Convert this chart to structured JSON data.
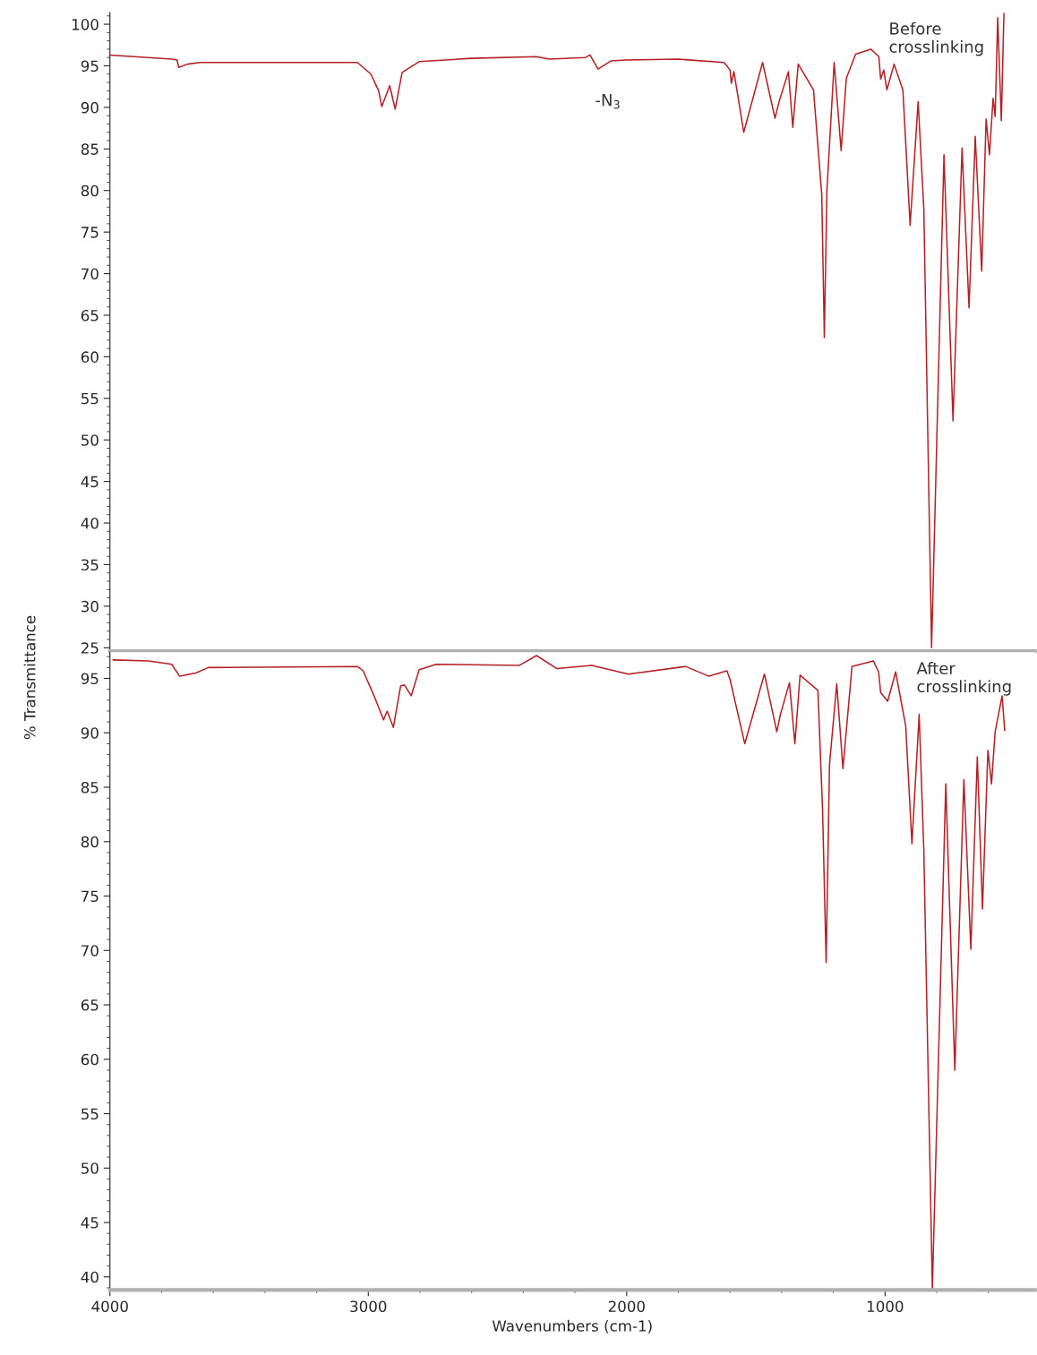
{
  "chart_data": [
    {
      "type": "line",
      "ylabel": "% Transmittance",
      "xlim": [
        4000,
        420
      ],
      "ylim": [
        24.6,
        101.4
      ],
      "tick_labels": "y",
      "grid": false,
      "legend": false,
      "marker": "none",
      "line_style": "solid",
      "xticks": [
        4000,
        3000,
        2000,
        1000
      ],
      "yticks": [
        25,
        30,
        35,
        40,
        45,
        50,
        55,
        60,
        65,
        70,
        75,
        80,
        85,
        90,
        95,
        100
      ],
      "annotations": [
        {
          "text": "-N$_{3}$",
          "x": 2111,
          "y": 94.6
        }
      ],
      "series": [
        {
          "name": "Before\ncrosslinking",
          "color": "#b52025",
          "x": [
            4000,
            3760,
            3740,
            3734,
            3700,
            3650,
            3042,
            2990,
            2960,
            2948,
            2917,
            2896,
            2869,
            2803,
            2600,
            2350,
            2300,
            2160,
            2142,
            2111,
            2060,
            2003,
            1800,
            1623,
            1600,
            1595,
            1585,
            1547,
            1474,
            1426,
            1410,
            1374,
            1357,
            1336,
            1277,
            1245,
            1235,
            1225,
            1197,
            1170,
            1150,
            1114,
            1055,
            1024,
            1017,
            1005,
            993,
            965,
            931,
            903,
            872,
            850,
            820,
            772,
            737,
            702,
            675,
            651,
            626,
            609,
            596,
            582,
            574,
            564,
            550,
            540
          ],
          "values": [
            96.3,
            95.8,
            95.7,
            94.8,
            95.2,
            95.4,
            95.4,
            94.0,
            92.0,
            90.1,
            92.6,
            89.8,
            94.2,
            95.5,
            95.9,
            96.1,
            95.8,
            96.0,
            96.3,
            94.6,
            95.6,
            95.7,
            95.8,
            95.4,
            94.5,
            92.9,
            94.3,
            87.0,
            95.4,
            88.7,
            90.7,
            94.3,
            87.6,
            95.2,
            92.1,
            79.5,
            62.3,
            80.0,
            95.4,
            84.8,
            93.5,
            96.4,
            97.0,
            96.1,
            93.4,
            94.5,
            92.1,
            95.2,
            92.1,
            75.8,
            90.7,
            77.8,
            25.0,
            84.3,
            52.3,
            85.1,
            65.9,
            86.5,
            70.3,
            88.6,
            84.3,
            91.1,
            88.9,
            100.8,
            88.4,
            101.3
          ]
        }
      ]
    },
    {
      "type": "line",
      "xlabel": "Wavenumbers (cm-1)",
      "xlim": [
        4000,
        420
      ],
      "ylim": [
        38.8,
        97.4
      ],
      "grid": false,
      "legend": false,
      "marker": "none",
      "line_style": "solid",
      "xticks": [
        4000,
        3000,
        2000,
        1000
      ],
      "yticks": [
        40,
        45,
        50,
        55,
        60,
        65,
        70,
        75,
        80,
        85,
        90,
        95
      ],
      "series": [
        {
          "name": "After\ncrosslinking",
          "color": "#b52025",
          "x": [
            3988,
            3850,
            3761,
            3730,
            3668,
            3619,
            3042,
            3020,
            2976,
            2941,
            2927,
            2903,
            2875,
            2860,
            2834,
            2803,
            2737,
            2415,
            2349,
            2270,
            2135,
            1993,
            1772,
            1682,
            1612,
            1600,
            1543,
            1467,
            1419,
            1405,
            1370,
            1349,
            1329,
            1260,
            1242,
            1228,
            1215,
            1187,
            1163,
            1128,
            1045,
            1025,
            1017,
            990,
            959,
            920,
            896,
            868,
            850,
            817,
            765,
            730,
            695,
            668,
            643,
            623,
            602,
            588,
            574,
            547,
            537
          ],
          "values": [
            96.7,
            96.6,
            96.3,
            95.2,
            95.5,
            96.0,
            96.1,
            95.7,
            93.3,
            91.2,
            92.0,
            90.5,
            94.3,
            94.4,
            93.4,
            95.8,
            96.3,
            96.2,
            97.1,
            95.9,
            96.2,
            95.4,
            96.1,
            95.2,
            95.7,
            94.9,
            89.0,
            95.4,
            90.1,
            91.7,
            94.6,
            89.0,
            95.3,
            93.9,
            83.0,
            68.9,
            87.1,
            94.5,
            86.7,
            96.1,
            96.6,
            95.6,
            93.7,
            92.9,
            95.6,
            90.6,
            79.8,
            91.7,
            79.2,
            38.9,
            85.3,
            59.0,
            85.7,
            70.1,
            87.8,
            73.8,
            88.4,
            85.3,
            90.1,
            93.4,
            90.2
          ]
        }
      ]
    }
  ]
}
